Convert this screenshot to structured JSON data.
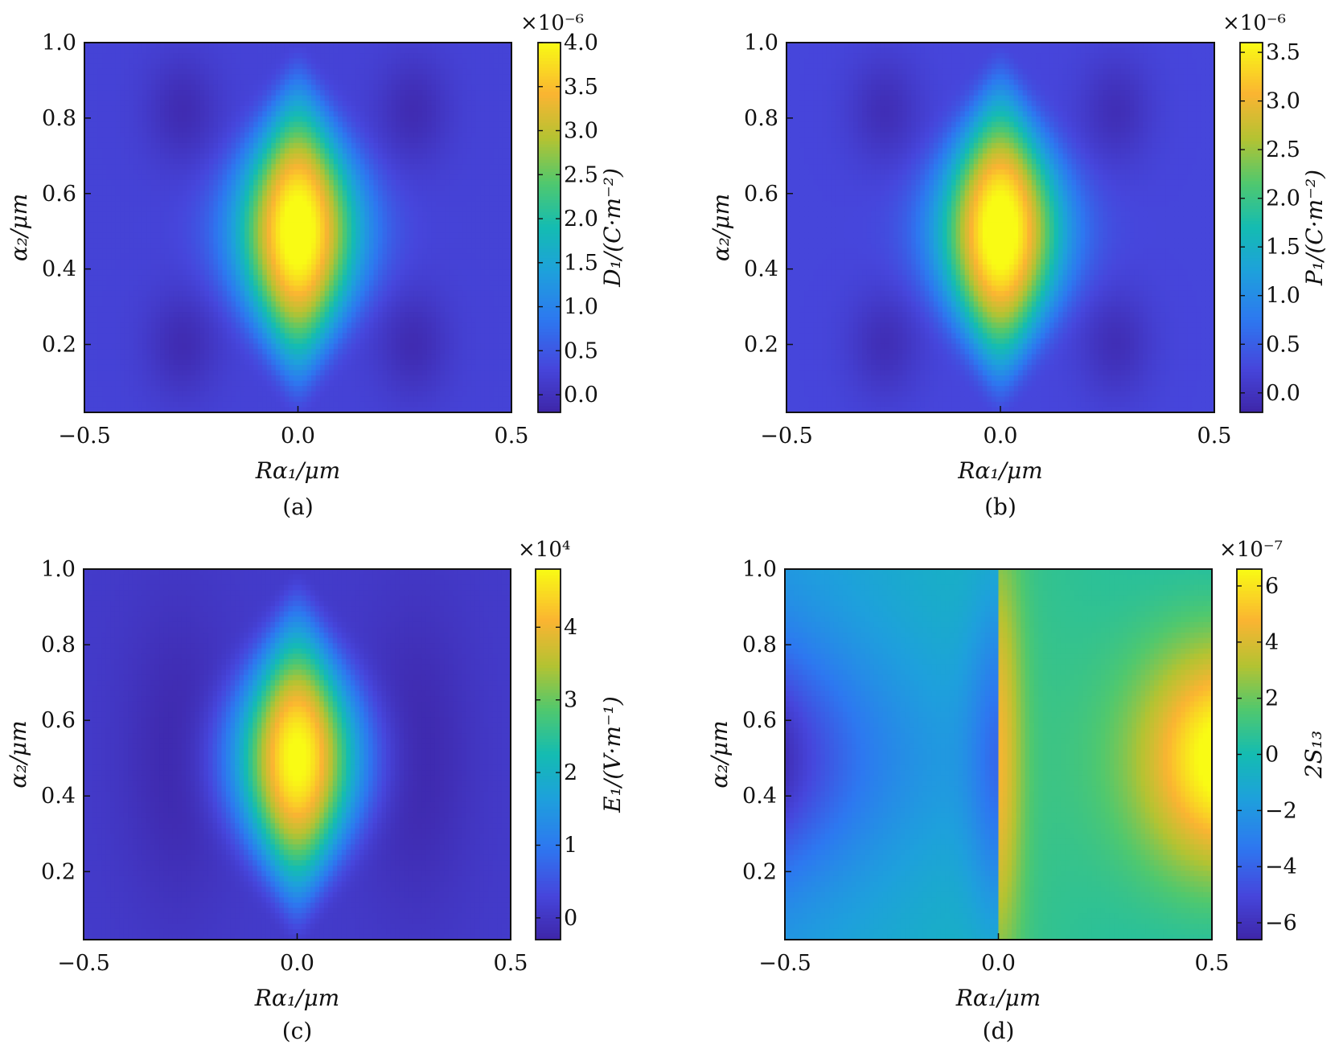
{
  "panels": [
    {
      "caption": "(a)",
      "colorbar_label": "D₁/(C·m⁻²)",
      "colorbar_multiplier": "×10⁻⁶"
    },
    {
      "caption": "(b)",
      "colorbar_label": "P₁/(C·m⁻²)",
      "colorbar_multiplier": "×10⁻⁶"
    },
    {
      "caption": "(c)",
      "colorbar_label": "E₁/(V·m⁻¹)",
      "colorbar_multiplier": "×10⁴"
    },
    {
      "caption": "(d)",
      "colorbar_label": "2S₁₃",
      "colorbar_multiplier": "×10⁻⁷"
    }
  ],
  "chart_data": [
    {
      "type": "heatmap",
      "title": "",
      "xlabel": "Rα₁/μm",
      "ylabel": "α₂/μm",
      "xlim": [
        -0.5,
        0.5
      ],
      "ylim": [
        0.02,
        1.0
      ],
      "x_ticks": [
        "−0.5",
        "0.0",
        "0.5"
      ],
      "x_tick_values": [
        -0.5,
        0.0,
        0.5
      ],
      "y_ticks": [
        "0.2",
        "0.4",
        "0.6",
        "0.8",
        "1.0"
      ],
      "y_tick_values": [
        0.2,
        0.4,
        0.6,
        0.8,
        1.0
      ],
      "colorbar_range": [
        -0.2,
        4.0
      ],
      "colorbar_ticks": [
        "0.0",
        "0.5",
        "1.0",
        "1.5",
        "2.0",
        "2.5",
        "3.0",
        "3.5",
        "4.0"
      ],
      "colorbar_tick_values": [
        0.0,
        0.5,
        1.0,
        1.5,
        2.0,
        2.5,
        3.0,
        3.5,
        4.0
      ],
      "colormap": "viridis-like",
      "field": "central vertical peak at Rα₁=0, max ≈4.0 near α₂=0.5"
    },
    {
      "type": "heatmap",
      "title": "",
      "xlabel": "Rα₁/μm",
      "ylabel": "α₂/μm",
      "xlim": [
        -0.5,
        0.5
      ],
      "ylim": [
        0.02,
        1.0
      ],
      "x_ticks": [
        "−0.5",
        "0.0",
        "0.5"
      ],
      "x_tick_values": [
        -0.5,
        0.0,
        0.5
      ],
      "y_ticks": [
        "0.2",
        "0.4",
        "0.6",
        "0.8",
        "1.0"
      ],
      "y_tick_values": [
        0.2,
        0.4,
        0.6,
        0.8,
        1.0
      ],
      "colorbar_range": [
        -0.2,
        3.6
      ],
      "colorbar_ticks": [
        "0.0",
        "0.5",
        "1.0",
        "1.5",
        "2.0",
        "2.5",
        "3.0",
        "3.5"
      ],
      "colorbar_tick_values": [
        0.0,
        0.5,
        1.0,
        1.5,
        2.0,
        2.5,
        3.0,
        3.5
      ],
      "colormap": "viridis-like",
      "field": "central vertical peak at Rα₁=0, max ≈3.6 near α₂=0.5"
    },
    {
      "type": "heatmap",
      "title": "",
      "xlabel": "Rα₁/μm",
      "ylabel": "α₂/μm",
      "xlim": [
        -0.5,
        0.5
      ],
      "ylim": [
        0.02,
        1.0
      ],
      "x_ticks": [
        "−0.5",
        "0.0",
        "0.5"
      ],
      "x_tick_values": [
        -0.5,
        0.0,
        0.5
      ],
      "y_ticks": [
        "0.2",
        "0.4",
        "0.6",
        "0.8",
        "1.0"
      ],
      "y_tick_values": [
        0.2,
        0.4,
        0.6,
        0.8,
        1.0
      ],
      "colorbar_range": [
        -0.3,
        4.8
      ],
      "colorbar_ticks": [
        "0",
        "1",
        "2",
        "3",
        "4"
      ],
      "colorbar_tick_values": [
        0,
        1,
        2,
        3,
        4
      ],
      "colormap": "viridis-like",
      "field": "central vertical peak at Rα₁=0, max ≈4.8 near α₂=0.5"
    },
    {
      "type": "heatmap",
      "title": "",
      "xlabel": "Rα₁/μm",
      "ylabel": "α₂/μm",
      "xlim": [
        -0.5,
        0.5
      ],
      "ylim": [
        0.02,
        1.0
      ],
      "x_ticks": [
        "−0.5",
        "0.0",
        "0.5"
      ],
      "x_tick_values": [
        -0.5,
        0.0,
        0.5
      ],
      "y_ticks": [
        "0.2",
        "0.4",
        "0.6",
        "0.8",
        "1.0"
      ],
      "y_tick_values": [
        0.2,
        0.4,
        0.6,
        0.8,
        1.0
      ],
      "colorbar_range": [
        -6.6,
        6.6
      ],
      "colorbar_ticks": [
        "−6",
        "−4",
        "−2",
        "0",
        "2",
        "4",
        "6"
      ],
      "colorbar_tick_values": [
        -6,
        -4,
        -2,
        0,
        2,
        4,
        6
      ],
      "colormap": "viridis-like",
      "field": "discontinuity at Rα₁=0; minimum ≈−6 at left edge, maximum ≈6 near right edge at α₂≈0.5"
    }
  ]
}
